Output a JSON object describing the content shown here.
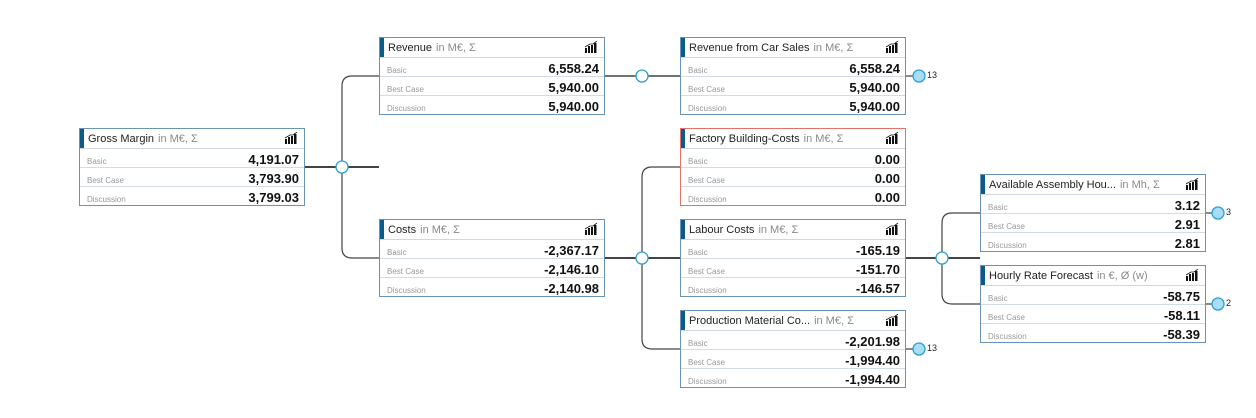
{
  "colors": {
    "accent": "#0b5a8a",
    "border": "#6a93b5",
    "alert": "#e0736a",
    "node": "#2a9fd6",
    "leaf": "#a9dcf5"
  },
  "cards": [
    {
      "id": "gross-margin",
      "title": "Gross Margin",
      "unit": "in M€, Σ",
      "alert": false,
      "rows": [
        {
          "label": "Basic",
          "value": "4,191.07"
        },
        {
          "label": "Best Case",
          "value": "3,793.90"
        },
        {
          "label": "Discussion",
          "value": "3,799.03"
        }
      ]
    },
    {
      "id": "revenue",
      "title": "Revenue",
      "unit": "in M€, Σ",
      "alert": false,
      "rows": [
        {
          "label": "Basic",
          "value": "6,558.24"
        },
        {
          "label": "Best Case",
          "value": "5,940.00"
        },
        {
          "label": "Discussion",
          "value": "5,940.00"
        }
      ]
    },
    {
      "id": "costs",
      "title": "Costs",
      "unit": "in M€, Σ",
      "alert": false,
      "rows": [
        {
          "label": "Basic",
          "value": "-2,367.17"
        },
        {
          "label": "Best Case",
          "value": "-2,146.10"
        },
        {
          "label": "Discussion",
          "value": "-2,140.98"
        }
      ]
    },
    {
      "id": "revenue-car-sales",
      "title": "Revenue from Car Sales",
      "unit": "in M€, Σ",
      "alert": false,
      "rows": [
        {
          "label": "Basic",
          "value": "6,558.24"
        },
        {
          "label": "Best Case",
          "value": "5,940.00"
        },
        {
          "label": "Discussion",
          "value": "5,940.00"
        }
      ],
      "children_count": "13"
    },
    {
      "id": "factory-building-costs",
      "title": "Factory Building-Costs",
      "unit": "in M€, Σ",
      "alert": true,
      "rows": [
        {
          "label": "Basic",
          "value": "0.00"
        },
        {
          "label": "Best Case",
          "value": "0.00"
        },
        {
          "label": "Discussion",
          "value": "0.00"
        }
      ]
    },
    {
      "id": "labour-costs",
      "title": "Labour Costs",
      "unit": "in M€, Σ",
      "alert": false,
      "rows": [
        {
          "label": "Basic",
          "value": "-165.19"
        },
        {
          "label": "Best Case",
          "value": "-151.70"
        },
        {
          "label": "Discussion",
          "value": "-146.57"
        }
      ]
    },
    {
      "id": "production-material",
      "title": "Production Material Co...",
      "unit": "in M€, Σ",
      "alert": false,
      "rows": [
        {
          "label": "Basic",
          "value": "-2,201.98"
        },
        {
          "label": "Best Case",
          "value": "-1,994.40"
        },
        {
          "label": "Discussion",
          "value": "-1,994.40"
        }
      ],
      "children_count": "13"
    },
    {
      "id": "available-assembly-hours",
      "title": "Available Assembly Hou...",
      "unit": "in Mh, Σ",
      "alert": false,
      "rows": [
        {
          "label": "Basic",
          "value": "3.12"
        },
        {
          "label": "Best Case",
          "value": "2.91"
        },
        {
          "label": "Discussion",
          "value": "2.81"
        }
      ],
      "children_count": "3"
    },
    {
      "id": "hourly-rate-forecast",
      "title": "Hourly Rate Forecast",
      "unit": "in €, Ø (w)",
      "alert": false,
      "rows": [
        {
          "label": "Basic",
          "value": "-58.75"
        },
        {
          "label": "Best Case",
          "value": "-58.11"
        },
        {
          "label": "Discussion",
          "value": "-58.39"
        }
      ],
      "children_count": "2"
    }
  ]
}
